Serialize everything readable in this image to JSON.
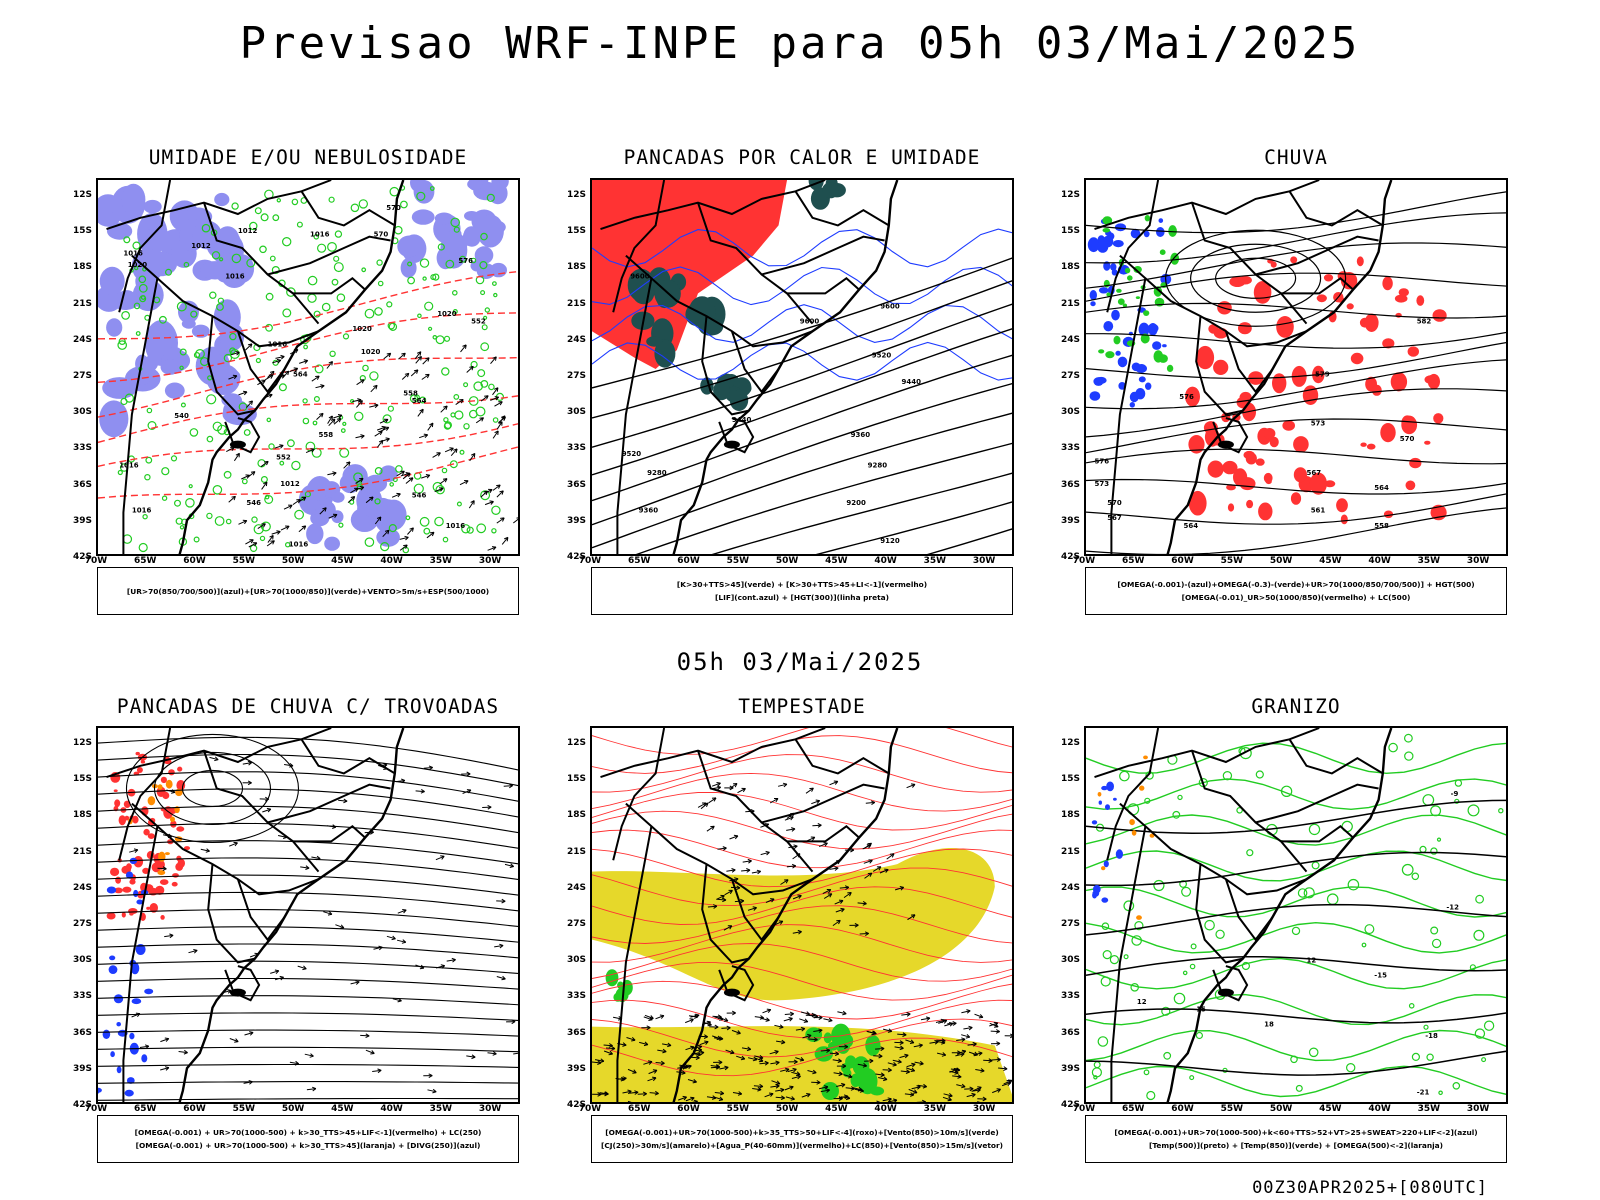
{
  "header": {
    "title": "Previsao WRF-INPE  para 05h 03/Mai/2025"
  },
  "middle_title": "05h 03/Mai/2025",
  "footer": "00Z30APR2025+[080UTC]",
  "axes": {
    "lat_labels": [
      "12S",
      "15S",
      "18S",
      "21S",
      "24S",
      "27S",
      "30S",
      "33S",
      "36S",
      "39S",
      "42S"
    ],
    "lon_labels": [
      "70W",
      "65W",
      "60W",
      "55W",
      "50W",
      "45W",
      "40W",
      "35W",
      "30W"
    ]
  },
  "colors": {
    "humidity_blue": "#8f8ff0",
    "humidity_green": "#22cc22",
    "red": "#ff3333",
    "dark_teal": "#1f4f4f",
    "yellow": "#e6d82a",
    "blue": "#1e3cff",
    "orange": "#ff8c00"
  },
  "panels": [
    {
      "title": "UMIDADE E/OU NEBULOSIDADE",
      "legend_lines": [
        "[UR>70(850/700/500)](azul)+[UR>70(1000/850)](verde)+VENTO>5m/s+ESP(500/1000)"
      ],
      "contour_labels": [
        "1012",
        "1012",
        "1016",
        "1016",
        "1020",
        "1020",
        "1016",
        "1016",
        "1020",
        "1016",
        "1016",
        "1012",
        "1016",
        "1016",
        "1020",
        "570",
        "570",
        "576",
        "564",
        "558",
        "552",
        "546",
        "552",
        "558",
        "564",
        "546",
        "540"
      ]
    },
    {
      "title": "PANCADAS POR CALOR E UMIDADE",
      "legend_lines": [
        "[K>30+TTS>45](verde) + [K>30+TTS>45+LI<-1](vermelho)",
        "[LIF](cont.azul) + [HGT(300)](linha preta)"
      ],
      "contour_labels": [
        "9600",
        "9600",
        "9600",
        "9520",
        "9440",
        "9360",
        "9280",
        "9200",
        "9120",
        "9440",
        "9360",
        "9280",
        "9520"
      ]
    },
    {
      "title": "CHUVA",
      "legend_lines": [
        "[OMEGA(-0.001)-(azul)+OMEGA(-0.3)-(verde)+UR>70(1000/850/700/500)] + HGT(500)",
        "[OMEGA(-0.01)_UR>50(1000/850)(vermelho) + LC(500)"
      ],
      "contour_labels": [
        "582",
        "579",
        "576",
        "573",
        "570",
        "567",
        "564",
        "561",
        "558",
        "576",
        "573",
        "570",
        "567",
        "564"
      ]
    },
    {
      "title": "PANCADAS DE CHUVA C/ TROVOADAS",
      "legend_lines": [
        "[OMEGA(-0.001) + UR>70(1000-500) + k>30_TTS>45+LIF<-1](vermelho) + LC(250)",
        "[OMEGA(-0.001) + UR>70(1000-500) + k>30_TTS>45](laranja) + [DIVG(250)](azul)"
      ],
      "contour_labels": []
    },
    {
      "title": "TEMPESTADE",
      "legend_lines": [
        "[OMEGA(-0.001)+UR>70(1000-500)+k>35_TTS>50+LIF<-4](roxo)+[Vento(850)>10m/s](verde)",
        "[CJ(250)>30m/s](amarelo)+[Agua_P(40-60mm)](vermelho)+LC(850)+[Vento(850)>15m/s](vetor)"
      ],
      "contour_labels": []
    },
    {
      "title": "GRANIZO",
      "legend_lines": [
        "[OMEGA(-0.001)+UR>70(1000-500)+k<60+TTS>52+VT>25+SWEAT>220+LIF<-2](azul)",
        "[Temp(500)](preto) + [Temp(850)](verde) + [OMEGA(500)<-2](laranja)"
      ],
      "contour_labels": [
        "-9",
        "-12",
        "-15",
        "-18",
        "-21",
        "12",
        "15",
        "18",
        "12"
      ]
    }
  ]
}
